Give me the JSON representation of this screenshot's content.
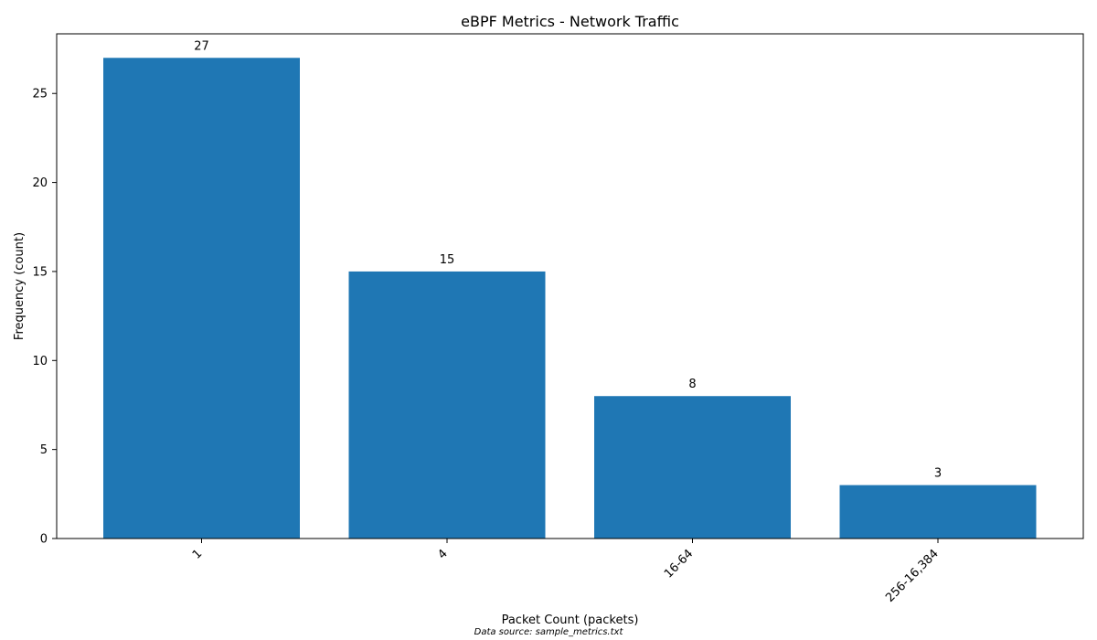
{
  "chart_data": {
    "type": "bar",
    "title": "eBPF Metrics - Network Traffic",
    "xlabel": "Packet Count (packets)",
    "ylabel": "Frequency (count)",
    "categories": [
      "1",
      "4",
      "16-64",
      "256-16,384"
    ],
    "values": [
      27,
      15,
      8,
      3
    ],
    "data_labels": [
      "27",
      "15",
      "8",
      "3"
    ],
    "ylim": [
      0,
      28.35
    ],
    "yticks": [
      0,
      5,
      10,
      15,
      20,
      25
    ],
    "grid": false,
    "legend": "none",
    "bar_color": "#1f77b4",
    "footnote": "Data source: sample_metrics.txt"
  }
}
